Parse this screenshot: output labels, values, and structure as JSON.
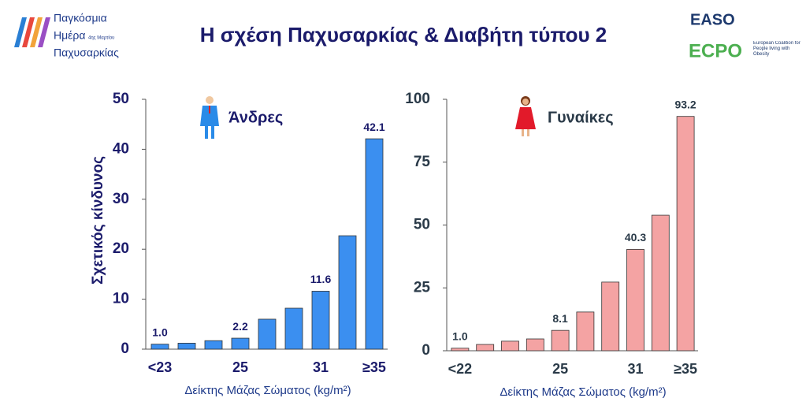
{
  "header": {
    "title": "Η σχέση Παχυσαρκίας & Διαβήτη τύπου 2",
    "logo_left": {
      "line1": "Παγκόσμια",
      "line2": "Ημέρα",
      "date": "4ης Μαρτίου",
      "line3": "Παχυσαρκίας"
    },
    "logo_right": {
      "easo": "EASO",
      "ecpo": "ECPO",
      "ecpo_text": "European Coalition for People living with Obesity"
    }
  },
  "chart_data": [
    {
      "type": "bar",
      "y_label": "Σχετικός κίνδυνος",
      "x_label": "Δείκτης Μάζας Σώματος (kg/m²)",
      "categories": [
        "<23",
        null,
        null,
        "25",
        null,
        null,
        "31",
        null,
        "≥35"
      ],
      "series": [
        {
          "name": "Άνδρες",
          "color": "#3b8ff0",
          "values": [
            1.0,
            1.2,
            1.7,
            2.2,
            6.0,
            8.2,
            11.6,
            22.7,
            42.1
          ],
          "value_labels": [
            "1.0",
            null,
            null,
            "2.2",
            null,
            null,
            "11.6",
            null,
            "42.1"
          ]
        }
      ],
      "ylim": [
        0,
        50
      ],
      "yticks": [
        0,
        10,
        20,
        30,
        40,
        50
      ],
      "grid": false
    },
    {
      "type": "bar",
      "x_label": "Δείκτης Μάζας Σώματος (kg/m²)",
      "categories": [
        "<22",
        null,
        null,
        null,
        "25",
        null,
        null,
        "31",
        null,
        "≥35"
      ],
      "series": [
        {
          "name": "Γυναίκες",
          "color": "#f4a3a3",
          "values": [
            1.0,
            2.5,
            3.8,
            4.7,
            8.1,
            15.4,
            27.3,
            40.3,
            53.9,
            93.2
          ],
          "value_labels": [
            "1.0",
            null,
            null,
            null,
            "8.1",
            null,
            null,
            "40.3",
            null,
            "93.2"
          ]
        }
      ],
      "ylim": [
        0,
        100
      ],
      "yticks": [
        0,
        25,
        50,
        75,
        100
      ],
      "grid": false
    }
  ]
}
